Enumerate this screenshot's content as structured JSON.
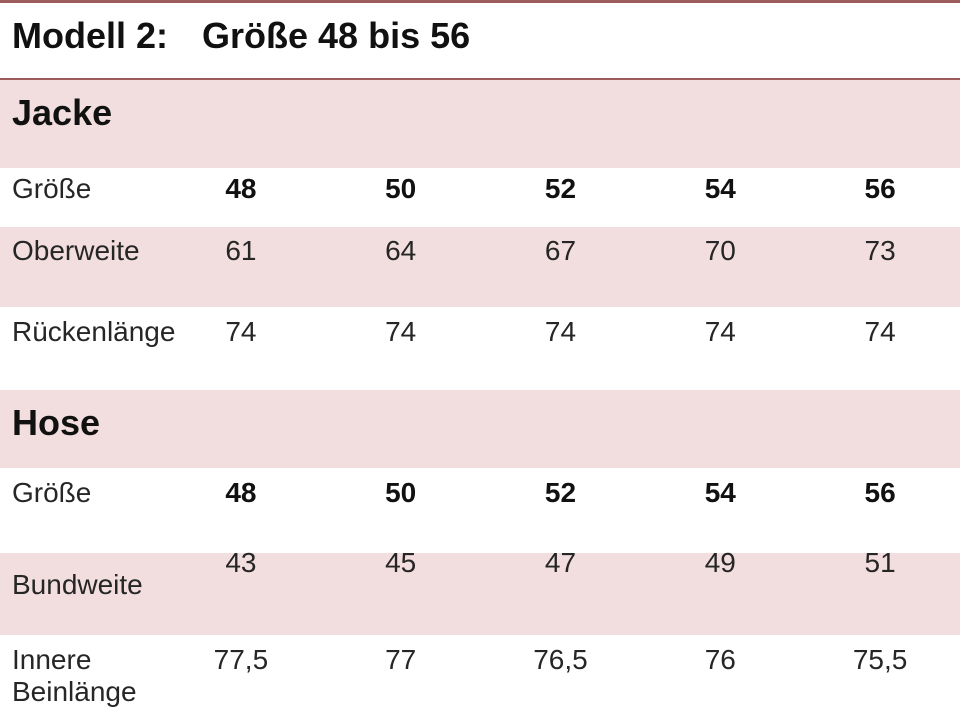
{
  "title": {
    "model": "Modell 2:",
    "range": "Größe 48 bis 56"
  },
  "colors": {
    "accent_line": "#9d5c5c",
    "band_pink": "#f2dede",
    "text": "#262626",
    "text_bold": "#111111",
    "background": "#ffffff"
  },
  "sections": [
    {
      "name": "Jacke",
      "size_row": {
        "label": "Größe",
        "values": [
          "48",
          "50",
          "52",
          "54",
          "56"
        ]
      },
      "rows": [
        {
          "label": "Oberweite",
          "values": [
            "61",
            "64",
            "67",
            "70",
            "73"
          ]
        },
        {
          "label": "Rückenlänge",
          "values": [
            "74",
            "74",
            "74",
            "74",
            "74"
          ]
        }
      ]
    },
    {
      "name": "Hose",
      "size_row": {
        "label": "Größe",
        "values": [
          "48",
          "50",
          "52",
          "54",
          "56"
        ]
      },
      "rows": [
        {
          "label": "Bundweite",
          "values": [
            "43",
            "45",
            "47",
            "49",
            "51"
          ]
        },
        {
          "label": "Innere Beinlänge",
          "values": [
            "77,5",
            "77",
            "76,5",
            "76",
            "75,5"
          ]
        }
      ]
    }
  ]
}
